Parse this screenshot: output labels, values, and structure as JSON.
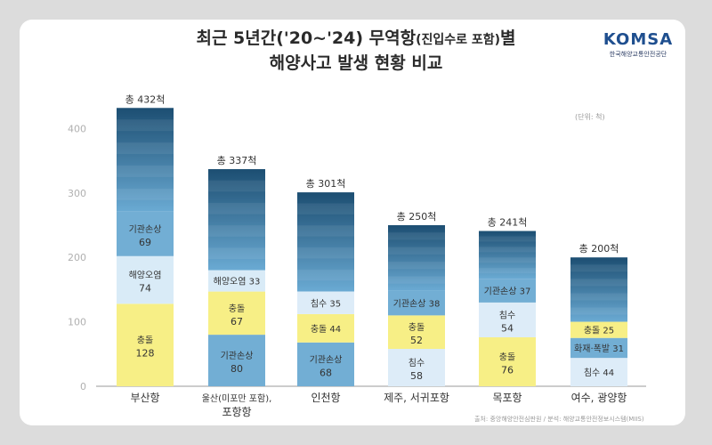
{
  "title": {
    "line1_main": "최근 5년간('20~'24) 무역항",
    "line1_paren": "(진입수로 포함)",
    "line1_end": "별",
    "line2": "해양사고 발생 현황 비교"
  },
  "logo": {
    "name": "KOMSA",
    "org": "한국해양교통안전공단"
  },
  "unit_label": "(단위: 척)",
  "source_text": "출처: 중앙해양안전심판원 / 분석: 해양교통안전정보시스템(MIIS)",
  "chart_data": {
    "type": "bar",
    "stacked": true,
    "ylim": [
      0,
      450
    ],
    "yticks": [
      0,
      100,
      200,
      300,
      400
    ],
    "grid": false,
    "categories": [
      {
        "label": [
          "부산항"
        ],
        "total": 432,
        "total_label": "총 432척",
        "segments": [
          {
            "label": "충돌",
            "value": 128,
            "kind": "collision"
          },
          {
            "label": "해양오염",
            "value": 74,
            "kind": "pollution"
          },
          {
            "label": "기관손상",
            "value": 69,
            "kind": "engine"
          }
        ]
      },
      {
        "label": [
          "울산(미포만 포함),",
          "포항항"
        ],
        "total": 337,
        "total_label": "총 337척",
        "segments": [
          {
            "label": "기관손상",
            "value": 80,
            "kind": "engine"
          },
          {
            "label": "충돌",
            "value": 67,
            "kind": "collision"
          },
          {
            "label": "해양오염",
            "value": 33,
            "kind": "pollution"
          }
        ]
      },
      {
        "label": [
          "인천항"
        ],
        "total": 301,
        "total_label": "총 301척",
        "segments": [
          {
            "label": "기관손상",
            "value": 68,
            "kind": "engine"
          },
          {
            "label": "충돌",
            "value": 44,
            "kind": "collision"
          },
          {
            "label": "침수",
            "value": 35,
            "kind": "flooding"
          }
        ]
      },
      {
        "label": [
          "제주, 서귀포항"
        ],
        "total": 250,
        "total_label": "총 250척",
        "segments": [
          {
            "label": "침수",
            "value": 58,
            "kind": "flooding"
          },
          {
            "label": "충돌",
            "value": 52,
            "kind": "collision"
          },
          {
            "label": "기관손상",
            "value": 38,
            "kind": "engine"
          }
        ]
      },
      {
        "label": [
          "목포항"
        ],
        "total": 241,
        "total_label": "총 241척",
        "segments": [
          {
            "label": "충돌",
            "value": 76,
            "kind": "collision"
          },
          {
            "label": "침수",
            "value": 54,
            "kind": "flooding"
          },
          {
            "label": "기관손상",
            "value": 37,
            "kind": "engine"
          }
        ]
      },
      {
        "label": [
          "여수, 광양항"
        ],
        "total": 200,
        "total_label": "총 200척",
        "segments": [
          {
            "label": "침수",
            "value": 44,
            "kind": "flooding"
          },
          {
            "label": "화재·폭발",
            "value": 31,
            "kind": "fire"
          },
          {
            "label": "충돌",
            "value": 25,
            "kind": "collision"
          }
        ]
      }
    ],
    "colors": {
      "collision": "#f7ef86",
      "pollution": "#d9ebf7",
      "flooding": "#ddecf8",
      "engine": "#72aed4",
      "fire": "#72aed4",
      "rest_top": "#1c4e72",
      "rest_bottom": "#6aaad3",
      "axis": "#9a9a9a",
      "tick_text": "#b0b0b0",
      "segment_text": "#333333",
      "total_text": "#333333"
    }
  }
}
